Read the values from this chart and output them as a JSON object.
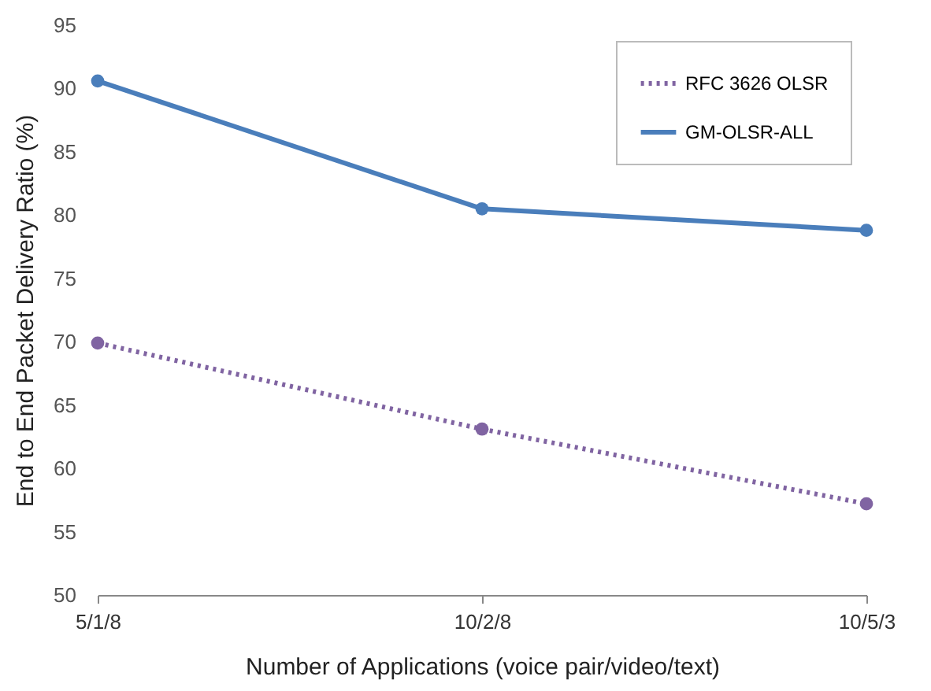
{
  "chart_data": {
    "type": "line",
    "xlabel": "Number of Applications (voice pair/video/text)",
    "ylabel": "End to End Packet Delivery Ratio (%)",
    "categories": [
      "5/1/8",
      "10/2/8",
      "10/5/3"
    ],
    "series": [
      {
        "name": "RFC 3626 OLSR",
        "color": "#8064a2",
        "values": [
          69.9,
          63.1,
          57.2
        ],
        "line_style": "dotted"
      },
      {
        "name": "GM-OLSR-ALL",
        "color": "#4a7ebb",
        "values": [
          90.6,
          80.5,
          78.8
        ],
        "line_style": "solid"
      }
    ],
    "ylim": [
      50,
      95
    ],
    "yticks": [
      50,
      55,
      60,
      65,
      70,
      75,
      80,
      85,
      90,
      95
    ],
    "grid": false,
    "legend": "top right",
    "marker": "circle"
  }
}
